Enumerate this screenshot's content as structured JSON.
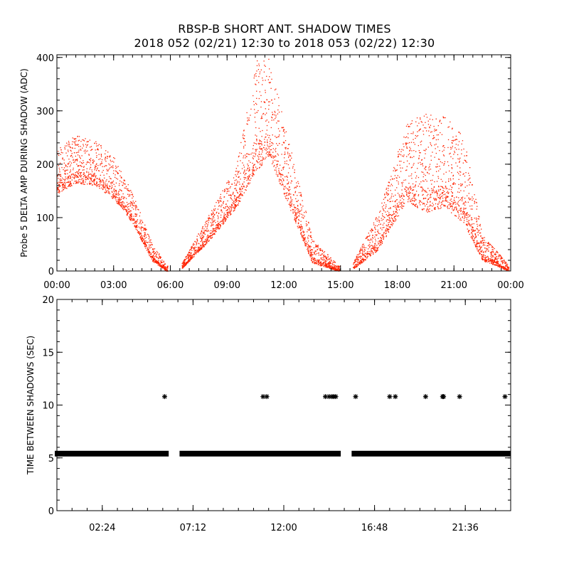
{
  "title_line1": "RBSP-B SHORT ANT. SHADOW TIMES",
  "title_line2": "2018 052 (02/21) 12:30 to 2018 053 (02/22) 12:30",
  "colors": {
    "points": "#ff2200",
    "marks": "#000000",
    "axes": "#000000",
    "background": "#ffffff"
  },
  "chart_data": [
    {
      "type": "scatter",
      "ylabel": "Probe 5 DELTA AMP DURING SHADOW (ADC)",
      "xlabel": "",
      "xlim_hours": [
        0,
        24
      ],
      "ylim": [
        0,
        405
      ],
      "x_tick_labels": [
        "00:00",
        "03:00",
        "06:00",
        "09:00",
        "12:00",
        "15:00",
        "18:00",
        "21:00",
        "00:00"
      ],
      "y_tick_labels": [
        "0",
        "100",
        "200",
        "300",
        "400"
      ],
      "gaps_hours": [
        [
          5.85,
          6.6
        ],
        [
          14.95,
          15.65
        ]
      ],
      "envelope_hours": [
        {
          "t": 0.0,
          "low": 145,
          "high": 230
        },
        {
          "t": 1.0,
          "low": 165,
          "high": 255
        },
        {
          "t": 2.0,
          "low": 160,
          "high": 245
        },
        {
          "t": 3.0,
          "low": 135,
          "high": 215
        },
        {
          "t": 4.0,
          "low": 90,
          "high": 145
        },
        {
          "t": 5.0,
          "low": 20,
          "high": 55
        },
        {
          "t": 5.8,
          "low": 0,
          "high": 10
        },
        {
          "t": 6.6,
          "low": 5,
          "high": 15
        },
        {
          "t": 8.0,
          "low": 55,
          "high": 105
        },
        {
          "t": 9.5,
          "low": 120,
          "high": 200
        },
        {
          "t": 10.5,
          "low": 185,
          "high": 395
        },
        {
          "t": 11.2,
          "low": 215,
          "high": 400
        },
        {
          "t": 12.5,
          "low": 100,
          "high": 210
        },
        {
          "t": 13.5,
          "low": 15,
          "high": 60
        },
        {
          "t": 14.9,
          "low": 0,
          "high": 10
        },
        {
          "t": 15.7,
          "low": 5,
          "high": 20
        },
        {
          "t": 17.0,
          "low": 40,
          "high": 110
        },
        {
          "t": 18.5,
          "low": 130,
          "high": 280
        },
        {
          "t": 19.5,
          "low": 110,
          "high": 295
        },
        {
          "t": 20.5,
          "low": 120,
          "high": 290
        },
        {
          "t": 21.5,
          "low": 90,
          "high": 255
        },
        {
          "t": 22.5,
          "low": 20,
          "high": 70
        },
        {
          "t": 23.9,
          "low": 0,
          "high": 10
        }
      ]
    },
    {
      "type": "scatter",
      "ylabel": "TIME BETWEEN SHADOWS (SEC)",
      "xlabel": "",
      "xlim_hours": [
        0,
        24
      ],
      "ylim": [
        0,
        20
      ],
      "x_ticks_hours": [
        2.4,
        7.2,
        12.0,
        16.8,
        21.6
      ],
      "x_tick_labels": [
        "02:24",
        "07:12",
        "12:00",
        "16:48",
        "21:36"
      ],
      "y_tick_labels": [
        "0",
        "5",
        "10",
        "15",
        "20"
      ],
      "baseline_sec": 5.4,
      "baseline_spans_hours": [
        [
          0.0,
          5.8
        ],
        [
          6.6,
          14.9
        ],
        [
          15.7,
          23.9
        ]
      ],
      "outliers": [
        {
          "t": 5.7,
          "y": 10.8
        },
        {
          "t": 10.9,
          "y": 10.8
        },
        {
          "t": 11.1,
          "y": 10.8
        },
        {
          "t": 14.2,
          "y": 10.8
        },
        {
          "t": 14.4,
          "y": 10.8
        },
        {
          "t": 14.55,
          "y": 10.8
        },
        {
          "t": 14.65,
          "y": 10.8
        },
        {
          "t": 14.75,
          "y": 10.8
        },
        {
          "t": 15.8,
          "y": 10.8
        },
        {
          "t": 17.6,
          "y": 10.8
        },
        {
          "t": 17.9,
          "y": 10.8
        },
        {
          "t": 19.5,
          "y": 10.8
        },
        {
          "t": 20.4,
          "y": 10.8
        },
        {
          "t": 20.45,
          "y": 10.8
        },
        {
          "t": 21.3,
          "y": 10.8
        },
        {
          "t": 23.7,
          "y": 10.8
        }
      ]
    }
  ]
}
